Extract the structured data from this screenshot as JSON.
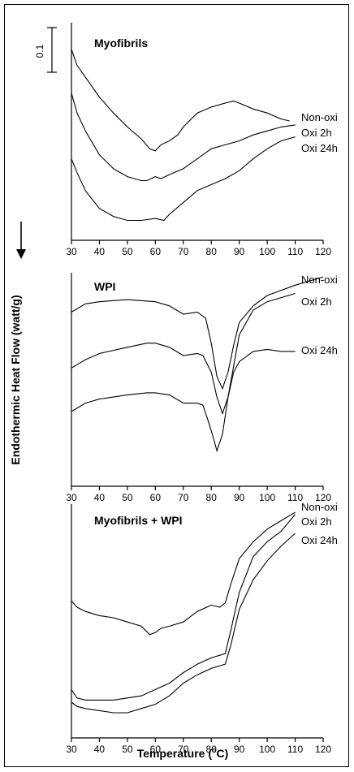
{
  "figure": {
    "y_axis_label": "Endothermic Heat Flow (watt/g)",
    "x_axis_label_prefix": "Temperature (",
    "x_axis_label_sup": "o",
    "x_axis_label_suffix": "C)",
    "scale_bar_label": "0.1"
  },
  "chart_data": [
    {
      "type": "line",
      "title": "Myofibrils",
      "xlim": [
        30,
        120
      ],
      "ylim": [
        0,
        1
      ],
      "xticks": [
        30,
        40,
        50,
        60,
        70,
        80,
        90,
        100,
        110,
        120
      ],
      "series": [
        {
          "name": "Non-oxi",
          "x": [
            30,
            32,
            35,
            40,
            45,
            50,
            55,
            58,
            60,
            62,
            65,
            68,
            70,
            75,
            80,
            85,
            88,
            90,
            95,
            100,
            105,
            108
          ],
          "y": [
            0.96,
            0.88,
            0.82,
            0.72,
            0.64,
            0.57,
            0.51,
            0.46,
            0.45,
            0.48,
            0.5,
            0.53,
            0.57,
            0.64,
            0.67,
            0.69,
            0.7,
            0.69,
            0.66,
            0.64,
            0.61,
            0.6
          ]
        },
        {
          "name": "Oxi 2h",
          "x": [
            30,
            32,
            35,
            40,
            45,
            50,
            55,
            57,
            60,
            62,
            65,
            70,
            75,
            80,
            85,
            90,
            95,
            100,
            105,
            110
          ],
          "y": [
            0.74,
            0.64,
            0.55,
            0.43,
            0.36,
            0.32,
            0.3,
            0.3,
            0.32,
            0.31,
            0.33,
            0.36,
            0.41,
            0.46,
            0.48,
            0.5,
            0.53,
            0.55,
            0.57,
            0.58
          ]
        },
        {
          "name": "Oxi 24h",
          "x": [
            30,
            32,
            35,
            40,
            45,
            50,
            55,
            60,
            63,
            65,
            70,
            75,
            80,
            85,
            90,
            95,
            100,
            105,
            110
          ],
          "y": [
            0.41,
            0.34,
            0.25,
            0.16,
            0.12,
            0.1,
            0.1,
            0.11,
            0.1,
            0.13,
            0.19,
            0.25,
            0.28,
            0.31,
            0.35,
            0.41,
            0.46,
            0.5,
            0.52
          ]
        }
      ]
    },
    {
      "type": "line",
      "title": "WPI",
      "xlim": [
        30,
        120
      ],
      "ylim": [
        0,
        1
      ],
      "xticks": [
        30,
        40,
        50,
        60,
        70,
        80,
        90,
        100,
        110,
        120
      ],
      "series": [
        {
          "name": "Non-oxi",
          "x": [
            30,
            35,
            40,
            50,
            60,
            65,
            70,
            75,
            78,
            80,
            82,
            84,
            86,
            88,
            90,
            95,
            100,
            110,
            120
          ],
          "y": [
            0.81,
            0.85,
            0.86,
            0.87,
            0.86,
            0.84,
            0.8,
            0.81,
            0.78,
            0.66,
            0.5,
            0.44,
            0.52,
            0.65,
            0.76,
            0.84,
            0.89,
            0.94,
            0.98
          ]
        },
        {
          "name": "Oxi 2h",
          "x": [
            30,
            35,
            40,
            50,
            57,
            60,
            65,
            70,
            75,
            77,
            80,
            82,
            84,
            86,
            88,
            90,
            95,
            100,
            105,
            110
          ],
          "y": [
            0.54,
            0.58,
            0.61,
            0.64,
            0.66,
            0.66,
            0.64,
            0.6,
            0.61,
            0.6,
            0.52,
            0.4,
            0.32,
            0.4,
            0.55,
            0.7,
            0.82,
            0.86,
            0.88,
            0.9
          ]
        },
        {
          "name": "Oxi 24h",
          "x": [
            30,
            35,
            40,
            50,
            57,
            60,
            65,
            70,
            75,
            77,
            79,
            81,
            82,
            84,
            86,
            88,
            90,
            95,
            100,
            105,
            110
          ],
          "y": [
            0.33,
            0.37,
            0.39,
            0.41,
            0.42,
            0.42,
            0.41,
            0.37,
            0.37,
            0.36,
            0.28,
            0.19,
            0.14,
            0.22,
            0.4,
            0.52,
            0.57,
            0.62,
            0.63,
            0.62,
            0.62
          ]
        }
      ]
    },
    {
      "type": "line",
      "title": "Myofibrils + WPI",
      "xlim": [
        30,
        120
      ],
      "ylim": [
        0,
        1
      ],
      "xticks": [
        30,
        40,
        50,
        60,
        70,
        80,
        90,
        100,
        110,
        120
      ],
      "series": [
        {
          "name": "Non-oxi",
          "x": [
            30,
            32,
            35,
            40,
            45,
            50,
            55,
            58,
            60,
            62,
            65,
            70,
            75,
            80,
            83,
            85,
            87,
            90,
            95,
            100,
            105,
            110
          ],
          "y": [
            0.58,
            0.55,
            0.53,
            0.51,
            0.5,
            0.48,
            0.46,
            0.42,
            0.43,
            0.45,
            0.46,
            0.48,
            0.53,
            0.56,
            0.55,
            0.57,
            0.66,
            0.78,
            0.86,
            0.92,
            0.96,
            1.0
          ]
        },
        {
          "name": "Oxi 2h",
          "x": [
            30,
            32,
            35,
            40,
            45,
            50,
            55,
            60,
            65,
            70,
            75,
            80,
            85,
            87,
            90,
            95,
            100,
            105,
            110
          ],
          "y": [
            0.16,
            0.12,
            0.11,
            0.11,
            0.11,
            0.12,
            0.13,
            0.16,
            0.19,
            0.24,
            0.28,
            0.31,
            0.33,
            0.44,
            0.62,
            0.79,
            0.86,
            0.91,
            0.99
          ]
        },
        {
          "name": "Oxi 24h",
          "x": [
            30,
            32,
            35,
            40,
            45,
            50,
            55,
            60,
            65,
            70,
            75,
            80,
            85,
            87,
            90,
            95,
            100,
            105,
            110
          ],
          "y": [
            0.1,
            0.08,
            0.07,
            0.06,
            0.05,
            0.05,
            0.07,
            0.09,
            0.13,
            0.19,
            0.23,
            0.26,
            0.28,
            0.37,
            0.54,
            0.68,
            0.77,
            0.84,
            0.9
          ]
        }
      ]
    }
  ]
}
